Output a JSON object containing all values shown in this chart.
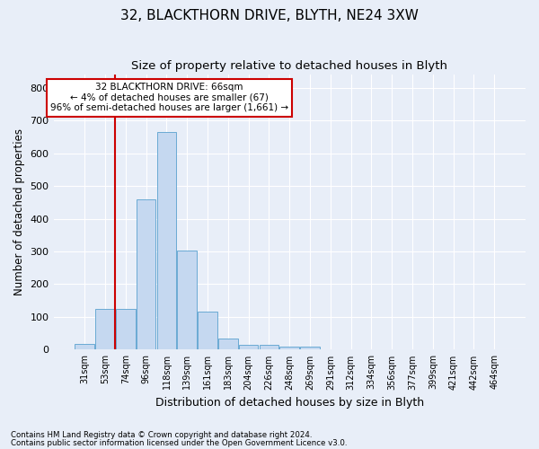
{
  "title": "32, BLACKTHORN DRIVE, BLYTH, NE24 3XW",
  "subtitle": "Size of property relative to detached houses in Blyth",
  "xlabel": "Distribution of detached houses by size in Blyth",
  "ylabel": "Number of detached properties",
  "footnote1": "Contains HM Land Registry data © Crown copyright and database right 2024.",
  "footnote2": "Contains public sector information licensed under the Open Government Licence v3.0.",
  "bin_labels": [
    "31sqm",
    "53sqm",
    "74sqm",
    "96sqm",
    "118sqm",
    "139sqm",
    "161sqm",
    "183sqm",
    "204sqm",
    "226sqm",
    "248sqm",
    "269sqm",
    "291sqm",
    "312sqm",
    "334sqm",
    "356sqm",
    "377sqm",
    "399sqm",
    "421sqm",
    "442sqm",
    "464sqm"
  ],
  "bar_values": [
    17,
    125,
    125,
    460,
    665,
    302,
    115,
    33,
    15,
    15,
    10,
    10,
    0,
    0,
    0,
    0,
    0,
    0,
    0,
    0,
    0
  ],
  "bar_color": "#c5d8f0",
  "bar_edge_color": "#6aaad4",
  "bar_width": 0.95,
  "ylim": [
    0,
    840
  ],
  "yticks": [
    0,
    100,
    200,
    300,
    400,
    500,
    600,
    700,
    800
  ],
  "red_line_color": "#cc0000",
  "annotation_text": "32 BLACKTHORN DRIVE: 66sqm\n← 4% of detached houses are smaller (67)\n96% of semi-detached houses are larger (1,661) →",
  "annotation_box_color": "#ffffff",
  "annotation_box_edge": "#cc0000",
  "bg_color": "#e8eef8",
  "grid_color": "#ffffff",
  "title_fontsize": 11,
  "subtitle_fontsize": 9.5
}
